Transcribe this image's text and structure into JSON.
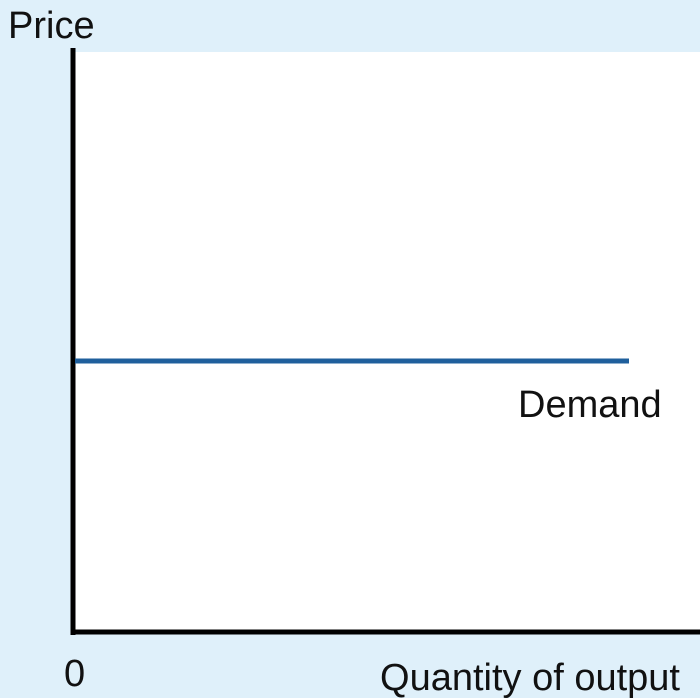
{
  "y_axis_label": "Price",
  "x_axis_label": "Quantity of output",
  "origin_label": "0",
  "curve_label": "Demand"
}
